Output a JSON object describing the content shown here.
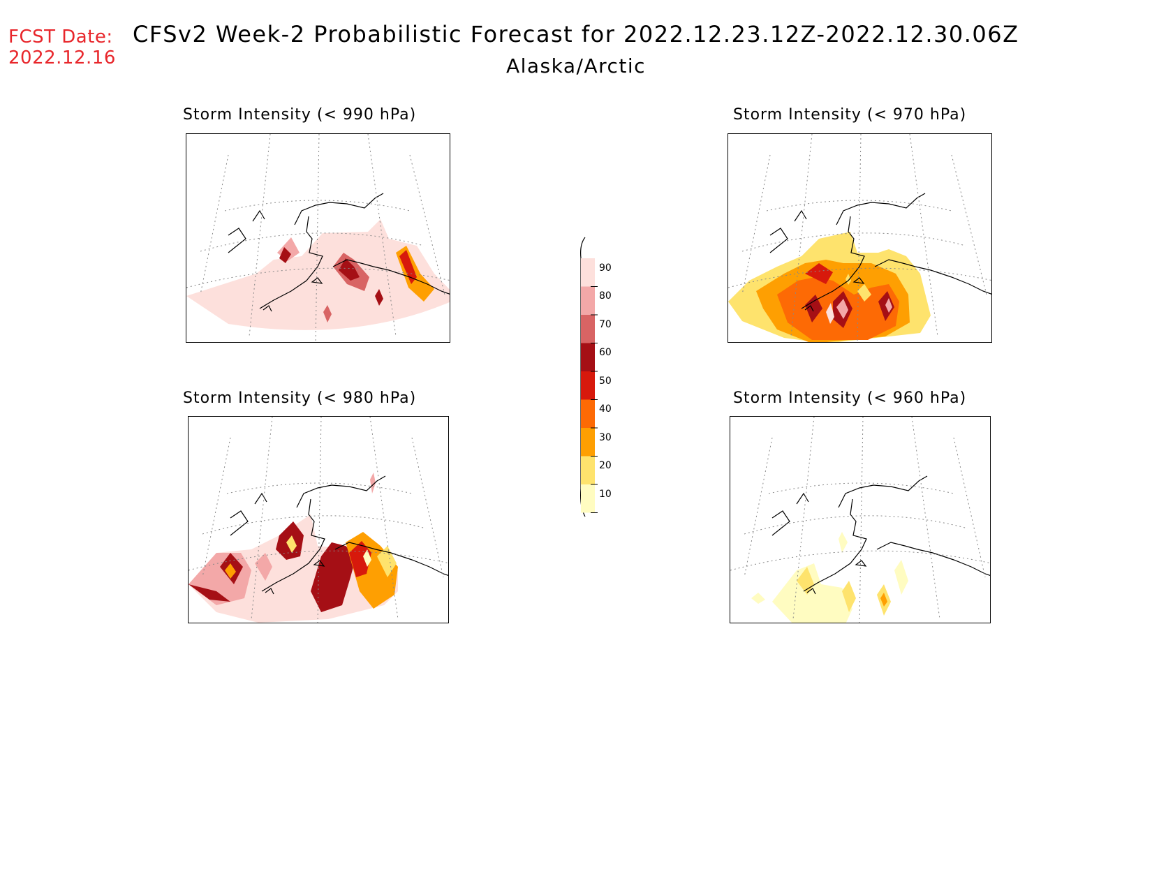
{
  "header": {
    "fcst_label": "FCST Date:",
    "fcst_date": "2022.12.16",
    "title": "CFSv2 Week-2 Probabilistic Forecast for 2022.12.23.12Z-2022.12.30.06Z",
    "subtitle": "Alaska/Arctic"
  },
  "panels": [
    {
      "id": "p990",
      "title": "Storm Intensity (< 990 hPa)"
    },
    {
      "id": "p970",
      "title": "Storm Intensity (< 970 hPa)"
    },
    {
      "id": "p980",
      "title": "Storm Intensity (< 980 hPa)"
    },
    {
      "id": "p960",
      "title": "Storm Intensity (< 960 hPa)"
    }
  ],
  "colorbar": {
    "labels": [
      "90",
      "80",
      "70",
      "60",
      "50",
      "40",
      "30",
      "20",
      "10"
    ],
    "colors": [
      "#fde0dc",
      "#f3a8a8",
      "#d86464",
      "#a50f15",
      "#d7190c",
      "#fd6a05",
      "#fe9f02",
      "#fee36d",
      "#fffcc1"
    ]
  }
}
